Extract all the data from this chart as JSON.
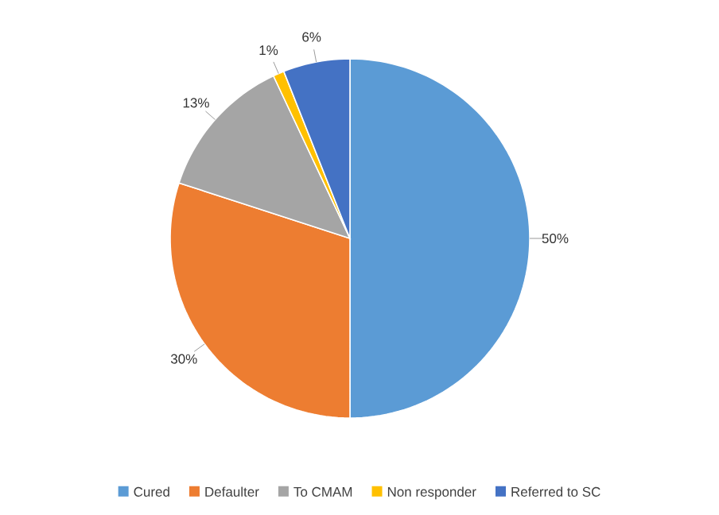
{
  "chart_data": {
    "type": "pie",
    "categories": [
      "Cured",
      "Defaulter",
      "To CMAM",
      "Non responder",
      "Referred to SC"
    ],
    "values": [
      50,
      30,
      13,
      1,
      6
    ],
    "value_labels": [
      "50%",
      "30%",
      "13%",
      "1%",
      "6%"
    ],
    "colors": [
      "#5b9bd5",
      "#ed7d31",
      "#a5a5a5",
      "#ffc000",
      "#4472c4"
    ],
    "legend": "bottom"
  }
}
